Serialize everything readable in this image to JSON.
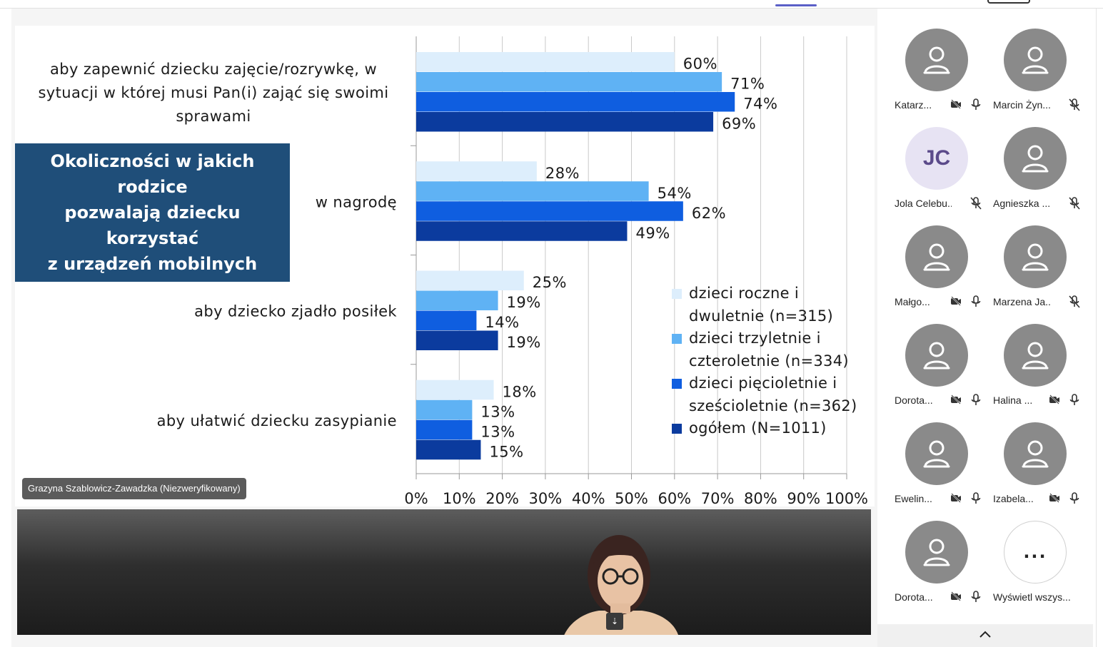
{
  "chart_data": {
    "type": "bar",
    "orientation": "horizontal",
    "title": "Okoliczności w jakich rodzice pozwalają dziecku korzystać z urządzeń mobilnych",
    "title_lines": [
      "Okoliczności w jakich rodzice",
      "pozwalają dziecku korzystać",
      "z urządzeń mobilnych"
    ],
    "categories": [
      [
        "aby zapewnić dziecku zajęcie/rozrywkę, w",
        "sytuacji w której musi Pan(i) zająć się swoimi",
        "sprawami"
      ],
      [
        "w nagrodę"
      ],
      [
        "aby dziecko zjadło posiłek"
      ],
      [
        "aby ułatwić dziecku zasypianie"
      ]
    ],
    "series": [
      {
        "name": "dzieci roczne i dwuletnie (n=315)",
        "name_lines": [
          "dzieci roczne i",
          "dwuletnie (n=315)"
        ],
        "color": "#ddeefc",
        "values": [
          60,
          28,
          25,
          18
        ]
      },
      {
        "name": "dzieci trzyletnie i czteroletnie (n=334)",
        "name_lines": [
          "dzieci trzyletnie i",
          "czteroletnie (n=334)"
        ],
        "color": "#5fb2f4",
        "values": [
          71,
          54,
          19,
          13
        ]
      },
      {
        "name": "dzieci pięcioletnie i sześcioletnie (n=362)",
        "name_lines": [
          "dzieci pięcioletnie i",
          "sześcioletnie (n=362)"
        ],
        "color": "#0f5ee0",
        "values": [
          74,
          62,
          14,
          13
        ]
      },
      {
        "name": "ogółem (N=1011)",
        "name_lines": [
          "ogółem (N=1011)"
        ],
        "color": "#0b3b9e",
        "values": [
          69,
          49,
          19,
          15
        ]
      }
    ],
    "xlim": [
      0,
      100
    ],
    "x_ticks": [
      "0%",
      "10%",
      "20%",
      "30%",
      "40%",
      "50%",
      "60%",
      "70%",
      "80%",
      "90%",
      "100%"
    ],
    "value_suffix": "%",
    "grid": true,
    "legend_position": "right"
  },
  "video": {
    "speaker_name": "Grazyna Szablowicz-Zawadzka (Niezweryfikowany)"
  },
  "participants": [
    {
      "name": "Katarz...",
      "avatar": "person-icon",
      "camera_off": true,
      "muted": false
    },
    {
      "name": "Marcin Żyn...",
      "avatar": "person-icon",
      "camera_off": false,
      "muted": true
    },
    {
      "name": "Jola Celebu...",
      "avatar": "initials",
      "initials": "JC",
      "camera_off": false,
      "muted": true
    },
    {
      "name": "Agnieszka ...",
      "avatar": "person-icon",
      "camera_off": false,
      "muted": true
    },
    {
      "name": "Małgo...",
      "avatar": "person-icon",
      "camera_off": true,
      "muted": false
    },
    {
      "name": "Marzena Ja...",
      "avatar": "person-icon",
      "camera_off": false,
      "muted": true
    },
    {
      "name": "Dorota...",
      "avatar": "person-icon",
      "camera_off": true,
      "muted": false
    },
    {
      "name": "Halina ...",
      "avatar": "person-icon",
      "camera_off": true,
      "muted": false
    },
    {
      "name": "Ewelin...",
      "avatar": "person-icon",
      "camera_off": true,
      "muted": false
    },
    {
      "name": "Izabela...",
      "avatar": "person-icon",
      "camera_off": true,
      "muted": false
    },
    {
      "name": "Dorota...",
      "avatar": "person-icon",
      "camera_off": true,
      "muted": false
    },
    {
      "name": "Wyświetl wszys...",
      "avatar": "more",
      "more_label": "...",
      "camera_off": false,
      "muted": false
    }
  ],
  "colors": {
    "title_box": "#1f4e79",
    "avatar_grey": "#8a8a8a",
    "accent": "#5b5fc7"
  },
  "icons": {
    "collapse": "chevron-up-icon",
    "camera_off": "camera-off-icon",
    "mic": "mic-icon",
    "mic_muted": "mic-off-icon"
  }
}
